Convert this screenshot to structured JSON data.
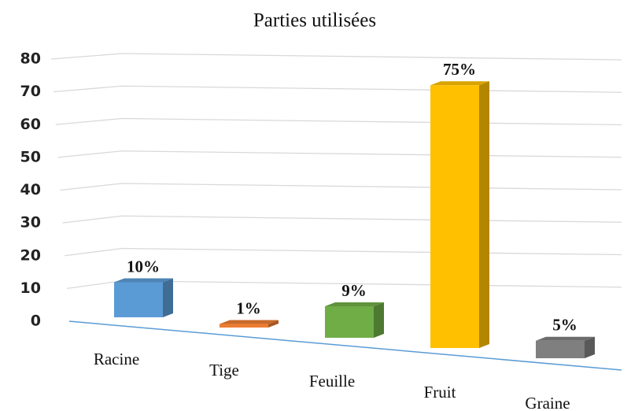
{
  "chart_data": {
    "type": "bar3d",
    "title": "Parties utilisées",
    "categories": [
      "Racine",
      "Tige",
      "Feuille",
      "Fruit",
      "Graine"
    ],
    "values": [
      10,
      1,
      9,
      75,
      5
    ],
    "value_labels": [
      "10%",
      "1%",
      "9%",
      "75%",
      "5%"
    ],
    "colors": [
      "#5b9bd5",
      "#ed7d31",
      "#70ad47",
      "#ffc000",
      "#7f7f7f"
    ],
    "ylim": [
      0,
      80
    ],
    "yticks": [
      0,
      10,
      20,
      30,
      40,
      50,
      60,
      70,
      80
    ],
    "grid": true
  }
}
